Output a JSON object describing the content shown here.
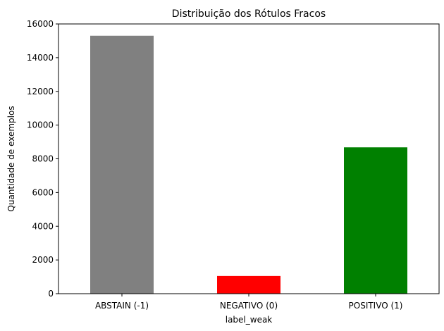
{
  "chart_data": {
    "type": "bar",
    "title": "Distribuição dos Rótulos Fracos",
    "xlabel": "label_weak",
    "ylabel": "Quantidade de exemplos",
    "categories": [
      "ABSTAIN (-1)",
      "NEGATIVO (0)",
      "POSITIVO (1)"
    ],
    "values": [
      15300,
      1050,
      8680
    ],
    "colors": [
      "#808080",
      "#ff0000",
      "#008000"
    ],
    "ylim": [
      0,
      16000
    ],
    "yticks": [
      0,
      2000,
      4000,
      6000,
      8000,
      10000,
      12000,
      14000,
      16000
    ],
    "grid": false,
    "legend": "none"
  }
}
